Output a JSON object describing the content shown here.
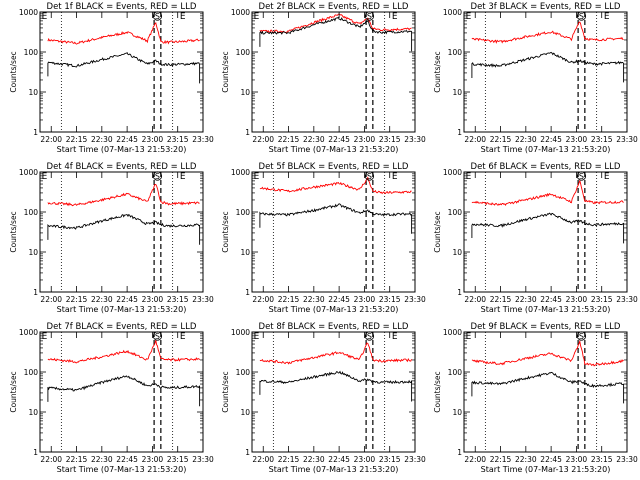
{
  "chart_data": [
    {
      "type": "line",
      "title": "Det 1f BLACK = Events, RED = LLD",
      "xlabel": "Start Time (07-Mar-13 21:53:20)",
      "ylabel": "Counts/sec",
      "yscale": "log",
      "ylim": [
        1,
        1000
      ],
      "xlim": [
        "21:53:20",
        "23:30:00"
      ],
      "xticks": [
        "22:00",
        "22:15",
        "22:30",
        "22:45",
        "23:00",
        "23:15",
        "23:30"
      ],
      "yticks": [
        "1",
        "10",
        "100",
        "1000"
      ],
      "markers": {
        "E_left": "21:56",
        "S": "23:03",
        "E_right": "23:18"
      },
      "dotted": [
        "22:06",
        "23:12"
      ],
      "dashed": [
        "23:01",
        "23:05"
      ],
      "series": [
        {
          "color": "#ff0000",
          "x": [
            "21:58",
            "22:15",
            "22:30",
            "22:45",
            "22:57",
            "23:02",
            "23:05",
            "23:10",
            "23:20",
            "23:28"
          ],
          "values": [
            200,
            165,
            230,
            310,
            190,
            550,
            180,
            175,
            185,
            200
          ]
        },
        {
          "color": "#000000",
          "x": [
            "21:58",
            "22:15",
            "22:30",
            "22:45",
            "22:57",
            "23:02",
            "23:05",
            "23:10",
            "23:20",
            "23:28"
          ],
          "values": [
            55,
            45,
            65,
            90,
            50,
            60,
            50,
            48,
            50,
            52
          ]
        }
      ]
    },
    {
      "type": "line",
      "title": "Det 2f BLACK = Events, RED = LLD",
      "xlabel": "Start Time (07-Mar-13 21:53:20)",
      "ylabel": "Counts/sec",
      "yscale": "log",
      "ylim": [
        1,
        1000
      ],
      "xlim": [
        "21:53:20",
        "23:30:00"
      ],
      "xticks": [
        "22:00",
        "22:15",
        "22:30",
        "22:45",
        "23:00",
        "23:15",
        "23:30"
      ],
      "yticks": [
        "1",
        "10",
        "100",
        "1000"
      ],
      "markers": {
        "E_left": "21:56",
        "S": "23:03",
        "E_right": "23:18"
      },
      "dotted": [
        "22:06",
        "23:12"
      ],
      "dashed": [
        "23:01",
        "23:05"
      ],
      "series": [
        {
          "color": "#ff0000",
          "x": [
            "21:58",
            "22:15",
            "22:30",
            "22:45",
            "22:57",
            "23:02",
            "23:05",
            "23:10",
            "23:20",
            "23:28"
          ],
          "values": [
            330,
            330,
            550,
            850,
            500,
            700,
            380,
            360,
            370,
            380
          ]
        },
        {
          "color": "#000000",
          "x": [
            "21:58",
            "22:15",
            "22:30",
            "22:45",
            "22:57",
            "23:02",
            "23:05",
            "23:10",
            "23:20",
            "23:28"
          ],
          "values": [
            300,
            300,
            480,
            700,
            420,
            600,
            330,
            310,
            320,
            330
          ]
        }
      ]
    },
    {
      "type": "line",
      "title": "Det 3f BLACK = Events, RED = LLD",
      "xlabel": "Start Time (07-Mar-13 21:53:20)",
      "ylabel": "Counts/sec",
      "yscale": "log",
      "ylim": [
        1,
        1000
      ],
      "xlim": [
        "21:53:20",
        "23:30:00"
      ],
      "xticks": [
        "22:00",
        "22:15",
        "22:30",
        "22:45",
        "23:00",
        "23:15",
        "23:30"
      ],
      "yticks": [
        "1",
        "10",
        "100",
        "1000"
      ],
      "markers": {
        "E_left": "21:56",
        "S": "23:03",
        "E_right": "23:18"
      },
      "dotted": [
        "22:06",
        "23:12"
      ],
      "dashed": [
        "23:01",
        "23:05"
      ],
      "series": [
        {
          "color": "#ff0000",
          "x": [
            "21:58",
            "22:15",
            "22:30",
            "22:45",
            "22:57",
            "23:02",
            "23:05",
            "23:10",
            "23:20",
            "23:28"
          ],
          "values": [
            210,
            180,
            240,
            320,
            210,
            600,
            220,
            200,
            210,
            220
          ]
        },
        {
          "color": "#000000",
          "x": [
            "21:58",
            "22:15",
            "22:30",
            "22:45",
            "22:57",
            "23:02",
            "23:05",
            "23:10",
            "23:20",
            "23:28"
          ],
          "values": [
            50,
            45,
            65,
            95,
            55,
            60,
            55,
            50,
            52,
            55
          ]
        }
      ]
    },
    {
      "type": "line",
      "title": "Det 4f BLACK = Events, RED = LLD",
      "xlabel": "Start Time (07-Mar-13 21:53:20)",
      "ylabel": "Counts/sec",
      "yscale": "log",
      "ylim": [
        1,
        1000
      ],
      "xlim": [
        "21:53:20",
        "23:30:00"
      ],
      "xticks": [
        "22:00",
        "22:15",
        "22:30",
        "22:45",
        "23:00",
        "23:15",
        "23:30"
      ],
      "yticks": [
        "1",
        "10",
        "100",
        "1000"
      ],
      "markers": {
        "E_left": "21:56",
        "S": "23:03",
        "E_right": "23:18"
      },
      "dotted": [
        "22:06",
        "23:12"
      ],
      "dashed": [
        "23:01",
        "23:05"
      ],
      "series": [
        {
          "color": "#ff0000",
          "x": [
            "21:58",
            "22:15",
            "22:30",
            "22:45",
            "22:57",
            "23:02",
            "23:05",
            "23:10",
            "23:20",
            "23:28"
          ],
          "values": [
            170,
            150,
            200,
            280,
            180,
            520,
            180,
            160,
            165,
            170
          ]
        },
        {
          "color": "#000000",
          "x": [
            "21:58",
            "22:15",
            "22:30",
            "22:45",
            "22:57",
            "23:02",
            "23:05",
            "23:10",
            "23:20",
            "23:28"
          ],
          "values": [
            45,
            40,
            60,
            85,
            50,
            55,
            48,
            45,
            46,
            48
          ]
        }
      ]
    },
    {
      "type": "line",
      "title": "Det 5f BLACK = Events, RED = LLD",
      "xlabel": "Start Time (07-Mar-13 21:53:20)",
      "ylabel": "Counts/sec",
      "yscale": "log",
      "ylim": [
        1,
        1000
      ],
      "xlim": [
        "21:53:20",
        "23:30:00"
      ],
      "xticks": [
        "22:00",
        "22:15",
        "22:30",
        "22:45",
        "23:00",
        "23:15",
        "23:30"
      ],
      "yticks": [
        "1",
        "10",
        "100",
        "1000"
      ],
      "markers": {
        "E_left": "21:56",
        "S": "23:03",
        "E_right": "23:18"
      },
      "dotted": [
        "22:06",
        "23:12"
      ],
      "dashed": [
        "23:01",
        "23:05"
      ],
      "series": [
        {
          "color": "#ff0000",
          "x": [
            "21:58",
            "22:15",
            "22:30",
            "22:45",
            "22:57",
            "23:02",
            "23:05",
            "23:10",
            "23:20",
            "23:28"
          ],
          "values": [
            400,
            330,
            420,
            520,
            360,
            700,
            330,
            300,
            310,
            320
          ]
        },
        {
          "color": "#000000",
          "x": [
            "21:58",
            "22:15",
            "22:30",
            "22:45",
            "22:57",
            "23:02",
            "23:05",
            "23:10",
            "23:20",
            "23:28"
          ],
          "values": [
            90,
            85,
            110,
            150,
            95,
            110,
            90,
            85,
            88,
            90
          ]
        }
      ]
    },
    {
      "type": "line",
      "title": "Det 6f BLACK = Events, RED = LLD",
      "xlabel": "Start Time (07-Mar-13 21:53:20)",
      "ylabel": "Counts/sec",
      "yscale": "log",
      "ylim": [
        1,
        1000
      ],
      "xlim": [
        "21:53:20",
        "23:30:00"
      ],
      "xticks": [
        "22:00",
        "22:15",
        "22:30",
        "22:45",
        "23:00",
        "23:15",
        "23:30"
      ],
      "yticks": [
        "1",
        "10",
        "100",
        "1000"
      ],
      "markers": {
        "E_left": "21:56",
        "S": "23:03",
        "E_right": "23:18"
      },
      "dotted": [
        "22:06",
        "23:12"
      ],
      "dashed": [
        "23:01",
        "23:05"
      ],
      "series": [
        {
          "color": "#ff0000",
          "x": [
            "21:58",
            "22:15",
            "22:30",
            "22:45",
            "22:57",
            "23:02",
            "23:05",
            "23:10",
            "23:20",
            "23:28"
          ],
          "values": [
            180,
            150,
            200,
            280,
            180,
            600,
            190,
            170,
            175,
            180
          ]
        },
        {
          "color": "#000000",
          "x": [
            "21:58",
            "22:15",
            "22:30",
            "22:45",
            "22:57",
            "23:02",
            "23:05",
            "23:10",
            "23:20",
            "23:28"
          ],
          "values": [
            50,
            45,
            65,
            90,
            55,
            60,
            52,
            48,
            50,
            52
          ]
        }
      ]
    },
    {
      "type": "line",
      "title": "Det 7f BLACK = Events, RED = LLD",
      "xlabel": "Start Time (07-Mar-13 21:53:20)",
      "ylabel": "Counts/sec",
      "yscale": "log",
      "ylim": [
        1,
        1000
      ],
      "xlim": [
        "21:53:20",
        "23:30:00"
      ],
      "xticks": [
        "22:00",
        "22:15",
        "22:30",
        "22:45",
        "23:00",
        "23:15",
        "23:30"
      ],
      "yticks": [
        "1",
        "10",
        "100",
        "1000"
      ],
      "markers": {
        "E_left": "21:56",
        "S": "23:03",
        "E_right": "23:18"
      },
      "dotted": [
        "22:06",
        "23:12"
      ],
      "dashed": [
        "23:01",
        "23:05"
      ],
      "series": [
        {
          "color": "#ff0000",
          "x": [
            "21:58",
            "22:15",
            "22:30",
            "22:45",
            "22:57",
            "23:02",
            "23:05",
            "23:10",
            "23:20",
            "23:28"
          ],
          "values": [
            210,
            180,
            240,
            330,
            200,
            600,
            210,
            200,
            205,
            210
          ]
        },
        {
          "color": "#000000",
          "x": [
            "21:58",
            "22:15",
            "22:30",
            "22:45",
            "22:57",
            "23:02",
            "23:05",
            "23:10",
            "23:20",
            "23:28"
          ],
          "values": [
            40,
            35,
            55,
            80,
            45,
            50,
            42,
            40,
            42,
            44
          ]
        }
      ]
    },
    {
      "type": "line",
      "title": "Det 8f BLACK = Events, RED = LLD",
      "xlabel": "Start Time (07-Mar-13 21:53:20)",
      "ylabel": "Counts/sec",
      "yscale": "log",
      "ylim": [
        1,
        1000
      ],
      "xlim": [
        "21:53:20",
        "23:30:00"
      ],
      "xticks": [
        "22:00",
        "22:15",
        "22:30",
        "22:45",
        "23:00",
        "23:15",
        "23:30"
      ],
      "yticks": [
        "1",
        "10",
        "100",
        "1000"
      ],
      "markers": {
        "E_left": "21:56",
        "S": "23:03",
        "E_right": "23:18"
      },
      "dotted": [
        "22:06",
        "23:12"
      ],
      "dashed": [
        "23:01",
        "23:05"
      ],
      "series": [
        {
          "color": "#ff0000",
          "x": [
            "21:58",
            "22:15",
            "22:30",
            "22:45",
            "22:57",
            "23:02",
            "23:05",
            "23:10",
            "23:20",
            "23:28"
          ],
          "values": [
            200,
            170,
            230,
            310,
            200,
            550,
            200,
            190,
            195,
            200
          ]
        },
        {
          "color": "#000000",
          "x": [
            "21:58",
            "22:15",
            "22:30",
            "22:45",
            "22:57",
            "23:02",
            "23:05",
            "23:10",
            "23:20",
            "23:28"
          ],
          "values": [
            60,
            55,
            75,
            100,
            60,
            65,
            58,
            55,
            56,
            58
          ]
        }
      ]
    },
    {
      "type": "line",
      "title": "Det 9f BLACK = Events, RED = LLD",
      "xlabel": "Start Time (07-Mar-13 21:53:20)",
      "ylabel": "Counts/sec",
      "yscale": "log",
      "ylim": [
        1,
        1000
      ],
      "xlim": [
        "21:53:20",
        "23:30:00"
      ],
      "xticks": [
        "22:00",
        "22:15",
        "22:30",
        "22:45",
        "23:00",
        "23:15",
        "23:30"
      ],
      "yticks": [
        "1",
        "10",
        "100",
        "1000"
      ],
      "markers": {
        "E_left": "21:56",
        "S": "23:03",
        "E_right": "23:18"
      },
      "dotted": [
        "22:06",
        "23:12"
      ],
      "dashed": [
        "23:01",
        "23:05"
      ],
      "series": [
        {
          "color": "#ff0000",
          "x": [
            "21:58",
            "22:15",
            "22:30",
            "22:45",
            "22:57",
            "23:02",
            "23:05",
            "23:10",
            "23:20",
            "23:28"
          ],
          "values": [
            190,
            160,
            220,
            290,
            190,
            580,
            160,
            150,
            170,
            190
          ]
        },
        {
          "color": "#000000",
          "x": [
            "21:58",
            "22:15",
            "22:30",
            "22:45",
            "22:57",
            "23:02",
            "23:05",
            "23:10",
            "23:20",
            "23:28"
          ],
          "values": [
            55,
            50,
            70,
            95,
            55,
            60,
            50,
            45,
            48,
            52
          ]
        }
      ]
    }
  ],
  "marker_labels": {
    "S": "S",
    "E": "E"
  }
}
